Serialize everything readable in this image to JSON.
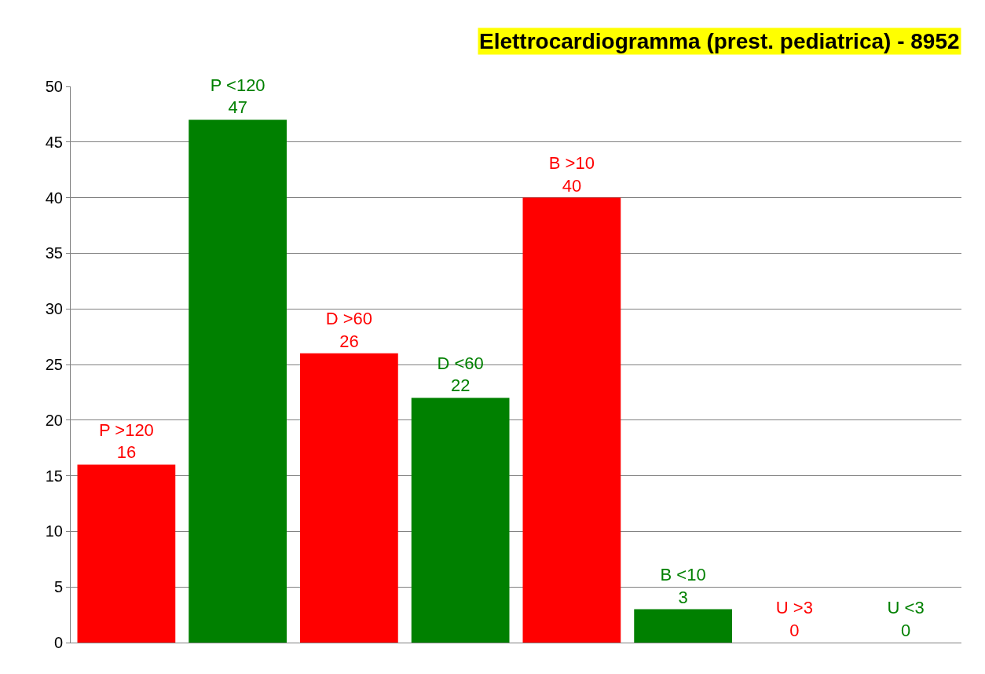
{
  "chart_data": {
    "type": "bar",
    "title": "Elettrocardiogramma (prest. pediatrica) - 8952",
    "categories": [
      "P >120",
      "P <120",
      "D >60",
      "D <60",
      "B >10",
      "B <10",
      "U >3",
      "U <3"
    ],
    "values": [
      16,
      47,
      26,
      22,
      40,
      3,
      0,
      0
    ],
    "colors": [
      "#ff0000",
      "#008000",
      "#ff0000",
      "#008000",
      "#ff0000",
      "#008000",
      "#ff0000",
      "#008000"
    ],
    "ylim": [
      0,
      50
    ],
    "yticks": [
      0,
      5,
      10,
      15,
      20,
      25,
      30,
      35,
      40,
      45,
      50
    ],
    "grid": "y",
    "data_labels": true,
    "tick_labels": "y"
  }
}
